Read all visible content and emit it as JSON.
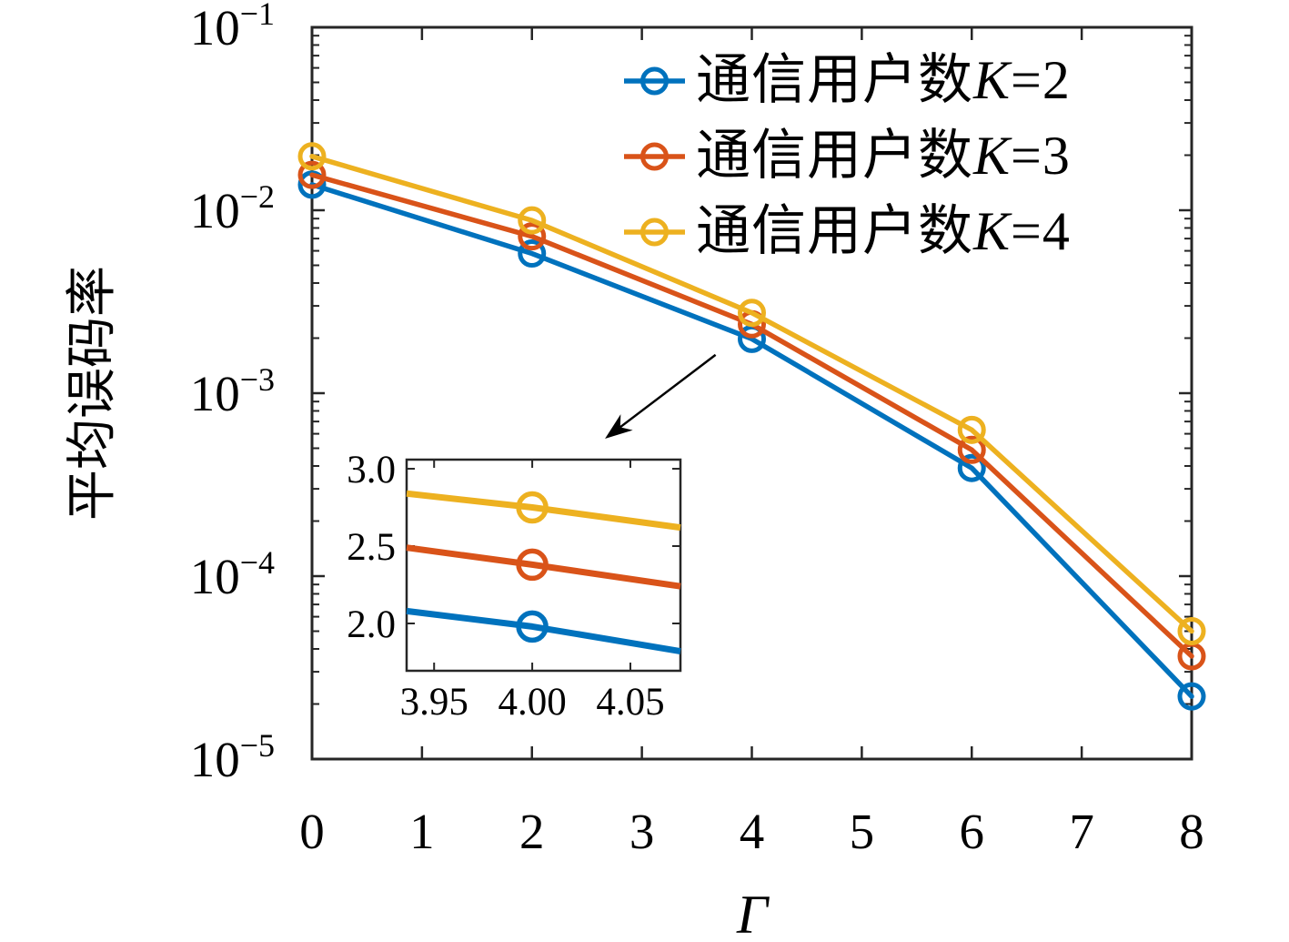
{
  "chart_data": {
    "type": "line",
    "title": "",
    "xlabel": "Γ",
    "ylabel": "平均误码率",
    "x_scale": "linear",
    "y_scale": "log",
    "xlim": [
      0,
      8
    ],
    "ylim": [
      1e-05,
      0.1
    ],
    "x_ticks": [
      0,
      1,
      2,
      3,
      4,
      5,
      6,
      7,
      8
    ],
    "y_tick_exponents": [
      -1,
      -2,
      -3,
      -4,
      -5
    ],
    "grid": false,
    "legend": {
      "position": "top-right-inside",
      "frame": false,
      "italic_variable": "K"
    },
    "series": [
      {
        "name": "通信用户数K=2",
        "color": "#0072BD",
        "marker": "circle",
        "x": [
          0,
          2,
          4,
          6,
          8
        ],
        "y": [
          0.0138,
          0.0058,
          0.00198,
          0.00039,
          2.2e-05
        ]
      },
      {
        "name": "通信用户数K=3",
        "color": "#D95319",
        "marker": "circle",
        "x": [
          0,
          2,
          4,
          6,
          8
        ],
        "y": [
          0.0156,
          0.0072,
          0.00238,
          0.00049,
          3.65e-05
        ]
      },
      {
        "name": "通信用户数K=4",
        "color": "#EDB120",
        "marker": "circle",
        "x": [
          0,
          2,
          4,
          6,
          8
        ],
        "y": [
          0.0197,
          0.0088,
          0.00275,
          0.00063,
          5e-05
        ]
      }
    ],
    "annotation_arrow": {
      "from": [
        3.67,
        0.00162
      ],
      "to": [
        2.77,
        0.00063
      ]
    },
    "inset": {
      "xlim": [
        3.936,
        4.0755
      ],
      "ylim": [
        1.694,
        3.059
      ],
      "x_ticks": [
        "3.95",
        "4.00",
        "4.05"
      ],
      "y_ticks": [
        "2.0",
        "2.5",
        "3.0"
      ],
      "value_scale": 0.001,
      "series": [
        {
          "name": "通信用户数K=2",
          "color": "#0072BD",
          "x": [
            3.936,
            4.0,
            4.0755
          ],
          "y": [
            2.08,
            1.98,
            1.82
          ],
          "marker_at": 4.0
        },
        {
          "name": "通信用户数K=3",
          "color": "#D95319",
          "x": [
            3.936,
            4.0,
            4.0755
          ],
          "y": [
            2.49,
            2.38,
            2.24
          ],
          "marker_at": 4.0
        },
        {
          "name": "通信用户数K=4",
          "color": "#EDB120",
          "x": [
            3.936,
            4.0,
            4.0755
          ],
          "y": [
            2.84,
            2.75,
            2.62
          ],
          "marker_at": 4.0
        }
      ]
    },
    "colors": {
      "axis": "#262626",
      "text": "#000000",
      "background": "#ffffff"
    }
  }
}
